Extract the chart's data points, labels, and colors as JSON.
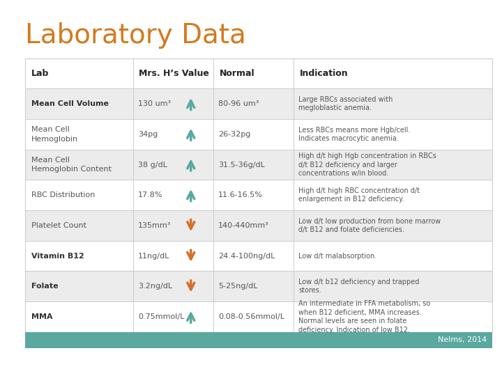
{
  "title": "Laboratory Data",
  "title_color": "#D47A1F",
  "title_fontsize": 28,
  "bg_color": "#FFFFFF",
  "footer_bg_color": "#5BA8A0",
  "footer_text": "Nelms, 2014",
  "footer_text_color": "#FFFFFF",
  "header_cols": [
    "Lab",
    "Mrs. H’s Value",
    "Normal",
    "Indication"
  ],
  "header_fontsize": 9,
  "row_fontsize": 8,
  "border_color": "#CCCCCC",
  "text_color_normal": "#555555",
  "text_color_bold": "#333333",
  "arrow_up_color": "#5BA8A0",
  "arrow_down_color": "#D4702A",
  "table_bg_header": "#FFFFFF",
  "rows": [
    {
      "lab": "Mean Cell Volume",
      "lab_bold": true,
      "value": "130 um³",
      "arrow": "up",
      "normal": "80-96 um³",
      "indication": "Large RBCs associated with\nmegloblastic anemia.",
      "bg": "#ECECEC"
    },
    {
      "lab": "Mean Cell\nHemoglobin",
      "lab_bold": false,
      "value": "34pg",
      "arrow": "up",
      "normal": "26-32pg",
      "indication": "Less RBCs means more Hgb/cell.\nIndicates macrocytic anemia.",
      "bg": "#FFFFFF"
    },
    {
      "lab": "Mean Cell\nHemoglobin Content",
      "lab_bold": false,
      "value": "38 g/dL",
      "arrow": "up",
      "normal": "31.5-36g/dL",
      "indication": "High d/t high Hgb concentration in RBCs\nd/t B12 deficiency and larger\nconcentrations w/in blood.",
      "bg": "#ECECEC"
    },
    {
      "lab": "RBC Distribution",
      "lab_bold": false,
      "value": "17.8%",
      "arrow": "up",
      "normal": "11.6-16.5%",
      "indication": "High d/t high RBC concentration d/t\nenlargement in B12 deficiency.",
      "bg": "#FFFFFF"
    },
    {
      "lab": "Platelet Count",
      "lab_bold": false,
      "value": "135mm³",
      "arrow": "down",
      "normal": "140-440mm³",
      "indication": "Low d/t low production from bone marrow\nd/t B12 and folate deficiencies.",
      "bg": "#ECECEC"
    },
    {
      "lab": "Vitamin B12",
      "lab_bold": true,
      "value": "11ng/dL",
      "arrow": "down",
      "normal": "24.4-100ng/dL",
      "indication": "Low d/t malabsorption.",
      "bg": "#FFFFFF"
    },
    {
      "lab": "Folate",
      "lab_bold": true,
      "value": "3.2ng/dL",
      "arrow": "down",
      "normal": "5-25ng/dL",
      "indication": "Low d/t b12 deficiency and trapped\nstores.",
      "bg": "#ECECEC"
    },
    {
      "lab": "MMA",
      "lab_bold": true,
      "value": "0.75mmol/L",
      "arrow": "up",
      "normal": "0.08-0.56mmol/L",
      "indication": "An intermediate in FFA metabolism, so\nwhen B12 deficient, MMA increases.\nNormal levels are seen in folate\ndeficiency. Indication of low B12.",
      "bg": "#FFFFFF"
    }
  ]
}
